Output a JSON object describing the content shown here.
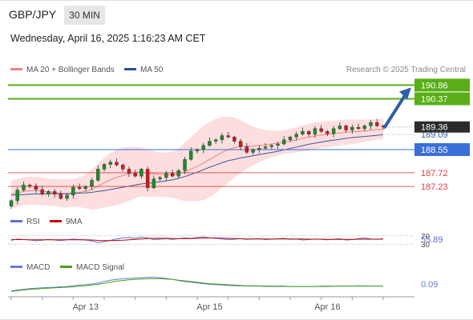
{
  "header": {
    "symbol": "GBP/JPY",
    "timeframe": "30 MIN",
    "datetime": "Wednesday, April 16, 2025 1:16:23 AM CET",
    "credit": "Research © 2025 Trading Central"
  },
  "colors": {
    "candle_up": "#1a8c2a",
    "candle_down": "#d01818",
    "bollinger_fill": "#fbd3d3",
    "ma20": "#f08080",
    "ma50": "#3a5a9c",
    "resistance": "#5aae18",
    "pivot": "#3a6fd8",
    "support": "#e04040",
    "arrow": "#2f5fa8",
    "rsi": "#6070c8",
    "rsi_ma": "#c00000",
    "macd": "#6080d8",
    "macd_signal": "#4aa018"
  },
  "chart_data": [
    {
      "type": "candlestick",
      "title": "GBP/JPY 30 MIN",
      "legend": [
        {
          "name": "MA 20 + Bollinger Bands",
          "color": "#f08080"
        },
        {
          "name": "MA 50",
          "color": "#2f4f8f"
        }
      ],
      "price_scale": [
        186.4,
        191.1
      ],
      "x_labels": [
        {
          "label": "Apr 13",
          "index": 12
        },
        {
          "label": "Apr 15",
          "index": 32
        },
        {
          "label": "Apr 16",
          "index": 51
        }
      ],
      "levels": [
        {
          "value": 190.86,
          "label": "190.86",
          "kind": "resistance"
        },
        {
          "value": 190.37,
          "label": "190.37",
          "kind": "resistance"
        },
        {
          "value": 189.36,
          "label": "189.36",
          "kind": "last"
        },
        {
          "value": 189.09,
          "label": "189.09",
          "kind": "pivot-secondary"
        },
        {
          "value": 188.55,
          "label": "188.55",
          "kind": "pivot"
        },
        {
          "value": 187.72,
          "label": "187.72",
          "kind": "support"
        },
        {
          "value": 187.23,
          "label": "187.23",
          "kind": "support"
        }
      ],
      "close": [
        186.72,
        187.1,
        187.28,
        187.25,
        187.12,
        186.95,
        187.05,
        186.95,
        186.8,
        186.92,
        187.2,
        187.15,
        187.22,
        187.45,
        187.85,
        188.02,
        188.1,
        188.0,
        187.85,
        187.7,
        187.6,
        187.85,
        187.18,
        187.5,
        187.55,
        187.7,
        187.6,
        187.8,
        188.2,
        188.5,
        188.55,
        188.7,
        188.85,
        188.9,
        189.05,
        189.0,
        188.85,
        188.65,
        188.45,
        188.55,
        188.6,
        188.65,
        188.7,
        188.75,
        188.9,
        189.0,
        189.1,
        189.2,
        189.1,
        189.3,
        189.2,
        189.12,
        189.3,
        189.4,
        189.25,
        189.35,
        189.3,
        189.4,
        189.52,
        189.4,
        189.36
      ],
      "ma20": [
        186.95,
        187.0,
        187.05,
        187.08,
        187.08,
        187.05,
        187.03,
        187.01,
        186.98,
        186.98,
        187.0,
        187.02,
        187.05,
        187.12,
        187.24,
        187.36,
        187.47,
        187.55,
        187.62,
        187.68,
        187.73,
        187.75,
        187.7,
        187.68,
        187.66,
        187.65,
        187.65,
        187.68,
        187.75,
        187.85,
        187.95,
        188.07,
        188.2,
        188.32,
        188.45,
        188.55,
        188.62,
        188.66,
        188.67,
        188.68,
        188.7,
        188.72,
        188.75,
        188.78,
        188.82,
        188.86,
        188.9,
        188.95,
        189.0,
        189.04,
        189.08,
        189.1,
        189.12,
        189.15,
        189.17,
        189.19,
        189.2,
        189.22,
        189.25,
        189.27,
        189.28
      ],
      "bb_upper": [
        187.45,
        187.5,
        187.55,
        187.58,
        187.58,
        187.55,
        187.52,
        187.5,
        187.48,
        187.48,
        187.5,
        187.55,
        187.65,
        187.85,
        188.05,
        188.25,
        188.42,
        188.55,
        188.62,
        188.65,
        188.65,
        188.62,
        188.55,
        188.5,
        188.45,
        188.45,
        188.48,
        188.6,
        188.8,
        189.0,
        189.2,
        189.4,
        189.55,
        189.65,
        189.72,
        189.75,
        189.7,
        189.6,
        189.48,
        189.38,
        189.3,
        189.25,
        189.22,
        189.22,
        189.25,
        189.3,
        189.35,
        189.42,
        189.48,
        189.52,
        189.55,
        189.57,
        189.58,
        189.6,
        189.62,
        189.63,
        189.62,
        189.62,
        189.63,
        189.64,
        189.65
      ],
      "bb_lower": [
        186.45,
        186.5,
        186.55,
        186.58,
        186.58,
        186.55,
        186.54,
        186.52,
        186.48,
        186.48,
        186.5,
        186.49,
        186.45,
        186.39,
        186.43,
        186.47,
        186.52,
        186.55,
        186.62,
        186.71,
        186.81,
        186.88,
        186.85,
        186.86,
        186.87,
        186.85,
        186.82,
        186.76,
        186.7,
        186.7,
        186.7,
        186.74,
        186.85,
        186.99,
        187.18,
        187.35,
        187.54,
        187.72,
        187.86,
        187.98,
        188.1,
        188.19,
        188.28,
        188.34,
        188.39,
        188.42,
        188.45,
        188.48,
        188.52,
        188.56,
        188.61,
        188.63,
        188.66,
        188.7,
        188.72,
        188.75,
        188.78,
        188.82,
        188.87,
        188.9,
        188.91
      ],
      "ma50": [
        186.92,
        186.93,
        186.94,
        186.95,
        186.96,
        186.96,
        186.97,
        186.97,
        186.97,
        186.97,
        186.98,
        186.99,
        187.0,
        187.02,
        187.05,
        187.08,
        187.12,
        187.16,
        187.2,
        187.24,
        187.28,
        187.32,
        187.34,
        187.37,
        187.4,
        187.43,
        187.47,
        187.52,
        187.58,
        187.66,
        187.74,
        187.83,
        187.92,
        188.0,
        188.08,
        188.15,
        188.2,
        188.25,
        188.29,
        188.33,
        188.37,
        188.41,
        188.45,
        188.49,
        188.54,
        188.59,
        188.64,
        188.69,
        188.74,
        188.78,
        188.82,
        188.86,
        188.89,
        188.92,
        188.95,
        188.98,
        189.0,
        189.02,
        189.04,
        189.06,
        189.09
      ]
    },
    {
      "type": "line",
      "title": "RSI",
      "series": [
        {
          "name": "RSI",
          "values": [
            48,
            55,
            52,
            50,
            46,
            49,
            53,
            50,
            47,
            51,
            55,
            52,
            50,
            45,
            38,
            42,
            48,
            55,
            60,
            62,
            58,
            64,
            60,
            52,
            54,
            56,
            53,
            57,
            60,
            58,
            62,
            65,
            60,
            58,
            55,
            52,
            54,
            56,
            53,
            55,
            57,
            52,
            54,
            56,
            58,
            53,
            55,
            50,
            52,
            55,
            53,
            51,
            54,
            56,
            50,
            52,
            57,
            60,
            55,
            53,
            56
          ]
        },
        {
          "name": "9MA",
          "values": [
            52,
            52,
            52,
            51,
            51,
            51,
            51,
            51,
            51,
            51,
            51,
            51,
            51,
            50,
            48,
            47,
            47,
            48,
            49,
            51,
            53,
            55,
            57,
            58,
            58,
            58,
            57,
            57,
            57,
            57,
            58,
            59,
            60,
            60,
            59,
            58,
            57,
            56,
            55,
            55,
            55,
            55,
            55,
            55,
            55,
            55,
            55,
            55,
            54,
            54,
            54,
            53,
            53,
            53,
            53,
            53,
            54,
            54,
            54,
            54,
            55
          ]
        }
      ],
      "value_labels": [
        "70",
        "55.89",
        "30"
      ]
    },
    {
      "type": "line",
      "title": "MACD",
      "series": [
        {
          "name": "MACD",
          "values": [
            -0.05,
            -0.02,
            0.0,
            0.02,
            0.03,
            0.04,
            0.05,
            0.06,
            0.07,
            0.08,
            0.1,
            0.12,
            0.13,
            0.15,
            0.18,
            0.22,
            0.26,
            0.28,
            0.3,
            0.31,
            0.32,
            0.33,
            0.34,
            0.34,
            0.33,
            0.31,
            0.28,
            0.25,
            0.22,
            0.2,
            0.18,
            0.16,
            0.14,
            0.13,
            0.12,
            0.11,
            0.1,
            0.1,
            0.09,
            0.09,
            0.09,
            0.08,
            0.08,
            0.08,
            0.08,
            0.08,
            0.08,
            0.08,
            0.08,
            0.08,
            0.09,
            0.09,
            0.09,
            0.09,
            0.09,
            0.09,
            0.1,
            0.1,
            0.09,
            0.09,
            0.09
          ]
        },
        {
          "name": "MACD Signal",
          "values": [
            -0.06,
            -0.04,
            -0.02,
            0.0,
            0.01,
            0.02,
            0.03,
            0.04,
            0.05,
            0.06,
            0.07,
            0.09,
            0.1,
            0.12,
            0.14,
            0.17,
            0.2,
            0.23,
            0.25,
            0.27,
            0.28,
            0.29,
            0.3,
            0.3,
            0.3,
            0.29,
            0.28,
            0.26,
            0.24,
            0.22,
            0.2,
            0.18,
            0.16,
            0.15,
            0.14,
            0.13,
            0.12,
            0.11,
            0.1,
            0.1,
            0.1,
            0.09,
            0.09,
            0.09,
            0.09,
            0.08,
            0.08,
            0.08,
            0.08,
            0.08,
            0.08,
            0.08,
            0.09,
            0.09,
            0.09,
            0.09,
            0.09,
            0.09,
            0.09,
            0.09,
            0.09
          ]
        }
      ],
      "value_labels": [
        "0.09"
      ]
    }
  ]
}
